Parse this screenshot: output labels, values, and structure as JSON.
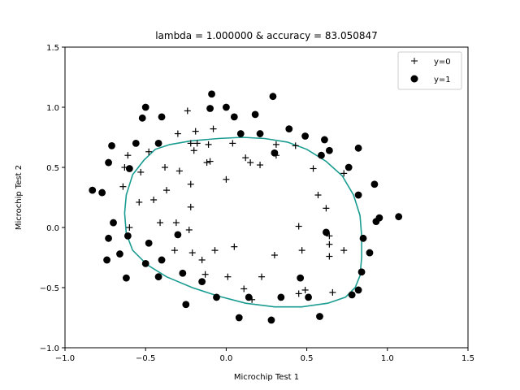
{
  "chart_data": {
    "type": "scatter",
    "title": "lambda = 1.000000 & accuracy = 83.050847",
    "xlabel": "Microchip Test 1",
    "ylabel": "Microchip Test 2",
    "xlim": [
      -1.0,
      1.5
    ],
    "ylim": [
      -1.0,
      1.5
    ],
    "xticks": [
      "−1.0",
      "−0.5",
      "0.0",
      "0.5",
      "1.0",
      "1.5"
    ],
    "yticks": [
      "−1.0",
      "−0.5",
      "0.0",
      "0.5",
      "1.0",
      "1.5"
    ],
    "grid": false,
    "legend_position": "top-right",
    "series": [
      {
        "name": "y=0",
        "marker": "plus",
        "color": "#000000",
        "points": [
          [
            -0.24,
            0.97
          ],
          [
            -0.3,
            0.78
          ],
          [
            -0.19,
            0.8
          ],
          [
            -0.08,
            0.82
          ],
          [
            -0.22,
            0.7
          ],
          [
            -0.18,
            0.7
          ],
          [
            -0.11,
            0.69
          ],
          [
            0.04,
            0.7
          ],
          [
            -0.2,
            0.64
          ],
          [
            -0.61,
            0.6
          ],
          [
            -0.48,
            0.63
          ],
          [
            -0.63,
            0.5
          ],
          [
            -0.53,
            0.46
          ],
          [
            -0.38,
            0.5
          ],
          [
            -0.29,
            0.47
          ],
          [
            -0.12,
            0.54
          ],
          [
            -0.1,
            0.55
          ],
          [
            0.12,
            0.58
          ],
          [
            0.15,
            0.54
          ],
          [
            0.21,
            0.52
          ],
          [
            0.31,
            0.6
          ],
          [
            0.31,
            0.69
          ],
          [
            0.43,
            0.68
          ],
          [
            0.54,
            0.49
          ],
          [
            0.73,
            0.45
          ],
          [
            -0.0,
            0.4
          ],
          [
            -0.22,
            0.36
          ],
          [
            -0.64,
            0.34
          ],
          [
            -0.37,
            0.31
          ],
          [
            -0.45,
            0.23
          ],
          [
            -0.54,
            0.21
          ],
          [
            -0.22,
            0.17
          ],
          [
            0.57,
            0.27
          ],
          [
            0.62,
            0.16
          ],
          [
            -0.6,
            0.0
          ],
          [
            -0.41,
            0.04
          ],
          [
            -0.31,
            0.04
          ],
          [
            -0.23,
            -0.02
          ],
          [
            0.45,
            0.01
          ],
          [
            0.64,
            -0.07
          ],
          [
            -0.21,
            -0.21
          ],
          [
            -0.32,
            -0.19
          ],
          [
            -0.07,
            -0.19
          ],
          [
            0.05,
            -0.16
          ],
          [
            0.47,
            -0.19
          ],
          [
            0.64,
            -0.14
          ],
          [
            0.64,
            -0.24
          ],
          [
            0.73,
            -0.19
          ],
          [
            -0.15,
            -0.27
          ],
          [
            -0.13,
            -0.39
          ],
          [
            0.01,
            -0.41
          ],
          [
            0.22,
            -0.41
          ],
          [
            0.3,
            -0.23
          ],
          [
            0.11,
            -0.51
          ],
          [
            0.16,
            -0.6
          ],
          [
            0.45,
            -0.55
          ],
          [
            0.49,
            -0.52
          ],
          [
            0.66,
            -0.54
          ]
        ]
      },
      {
        "name": "y=1",
        "marker": "circle",
        "color": "#000000",
        "points": [
          [
            -0.09,
            1.11
          ],
          [
            0.29,
            1.09
          ],
          [
            -0.5,
            1.0
          ],
          [
            -0.1,
            0.99
          ],
          [
            -0.0,
            1.0
          ],
          [
            -0.52,
            0.91
          ],
          [
            -0.4,
            0.92
          ],
          [
            0.05,
            0.92
          ],
          [
            0.18,
            0.94
          ],
          [
            0.39,
            0.82
          ],
          [
            0.09,
            0.78
          ],
          [
            0.21,
            0.78
          ],
          [
            0.49,
            0.76
          ],
          [
            0.61,
            0.73
          ],
          [
            -0.71,
            0.68
          ],
          [
            -0.56,
            0.7
          ],
          [
            -0.42,
            0.7
          ],
          [
            0.64,
            0.64
          ],
          [
            0.82,
            0.66
          ],
          [
            0.3,
            0.62
          ],
          [
            0.59,
            0.6
          ],
          [
            -0.73,
            0.54
          ],
          [
            -0.6,
            0.49
          ],
          [
            0.76,
            0.5
          ],
          [
            0.92,
            0.36
          ],
          [
            -0.83,
            0.31
          ],
          [
            -0.77,
            0.29
          ],
          [
            0.82,
            0.27
          ],
          [
            0.95,
            0.08
          ],
          [
            1.07,
            0.09
          ],
          [
            0.93,
            0.05
          ],
          [
            -0.7,
            0.04
          ],
          [
            0.62,
            -0.04
          ],
          [
            -0.73,
            -0.09
          ],
          [
            -0.61,
            -0.07
          ],
          [
            -0.3,
            -0.06
          ],
          [
            0.85,
            -0.09
          ],
          [
            -0.48,
            -0.13
          ],
          [
            0.89,
            -0.21
          ],
          [
            -0.66,
            -0.22
          ],
          [
            -0.74,
            -0.27
          ],
          [
            -0.4,
            -0.27
          ],
          [
            -0.5,
            -0.3
          ],
          [
            0.84,
            -0.37
          ],
          [
            -0.27,
            -0.38
          ],
          [
            -0.62,
            -0.42
          ],
          [
            -0.42,
            -0.41
          ],
          [
            0.46,
            -0.42
          ],
          [
            -0.15,
            -0.45
          ],
          [
            0.82,
            -0.52
          ],
          [
            0.78,
            -0.56
          ],
          [
            -0.06,
            -0.58
          ],
          [
            0.14,
            -0.58
          ],
          [
            0.34,
            -0.58
          ],
          [
            0.51,
            -0.58
          ],
          [
            -0.25,
            -0.64
          ],
          [
            0.58,
            -0.74
          ],
          [
            0.08,
            -0.75
          ],
          [
            0.28,
            -0.77
          ]
        ]
      },
      {
        "name": "",
        "type": "line",
        "color": "#1a9c91",
        "closed": true,
        "points": [
          [
            -0.35,
            0.69
          ],
          [
            -0.22,
            0.72
          ],
          [
            -0.05,
            0.74
          ],
          [
            0.1,
            0.75
          ],
          [
            0.24,
            0.74
          ],
          [
            0.38,
            0.71
          ],
          [
            0.5,
            0.65
          ],
          [
            0.62,
            0.55
          ],
          [
            0.72,
            0.43
          ],
          [
            0.79,
            0.27
          ],
          [
            0.83,
            0.1
          ],
          [
            0.84,
            -0.07
          ],
          [
            0.84,
            -0.25
          ],
          [
            0.83,
            -0.4
          ],
          [
            0.8,
            -0.5
          ],
          [
            0.74,
            -0.58
          ],
          [
            0.63,
            -0.63
          ],
          [
            0.47,
            -0.66
          ],
          [
            0.3,
            -0.66
          ],
          [
            0.12,
            -0.63
          ],
          [
            -0.05,
            -0.57
          ],
          [
            -0.21,
            -0.5
          ],
          [
            -0.37,
            -0.41
          ],
          [
            -0.49,
            -0.31
          ],
          [
            -0.58,
            -0.19
          ],
          [
            -0.62,
            -0.05
          ],
          [
            -0.63,
            0.12
          ],
          [
            -0.62,
            0.27
          ],
          [
            -0.58,
            0.44
          ],
          [
            -0.51,
            0.56
          ],
          [
            -0.44,
            0.65
          ]
        ]
      }
    ]
  }
}
